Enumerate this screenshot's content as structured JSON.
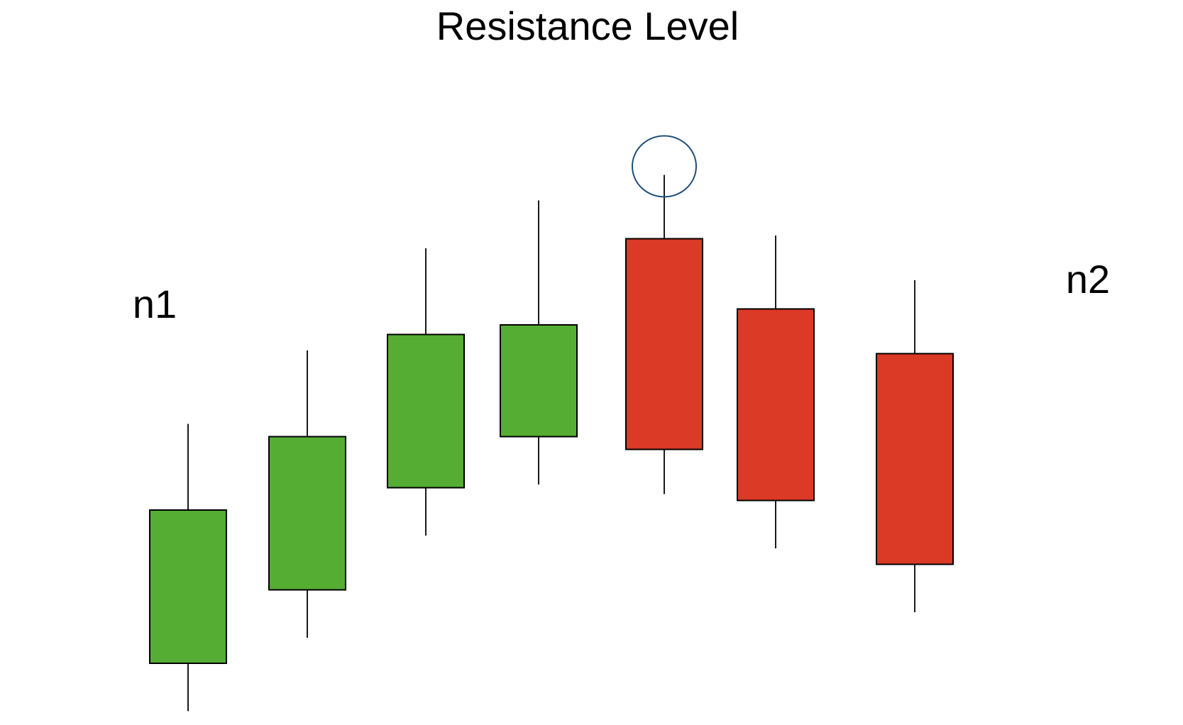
{
  "chart_data": {
    "type": "candlestick",
    "title": "Resistance Level",
    "xlabel": "",
    "ylabel": "",
    "grid": false,
    "legend": "none",
    "ylim": [
      0,
      1000
    ],
    "annotations": [
      {
        "text": "n1",
        "placement": "left of first candle"
      },
      {
        "text": "n2",
        "placement": "right of last candle"
      }
    ],
    "highlight": {
      "candle_index": 4,
      "target": "upper wick tip",
      "shape": "circle"
    },
    "colors": {
      "bullish": "#55AD33",
      "bearish": "#DB3A27",
      "outline": "#000000",
      "wick": "#000000",
      "highlight": "#1F4E79"
    },
    "candles": [
      {
        "open": 100,
        "close": 340,
        "high": 475,
        "low": 25,
        "direction": "up"
      },
      {
        "open": 215,
        "close": 455,
        "high": 590,
        "low": 140,
        "direction": "up"
      },
      {
        "open": 375,
        "close": 615,
        "high": 750,
        "low": 300,
        "direction": "up"
      },
      {
        "open": 455,
        "close": 630,
        "high": 825,
        "low": 380,
        "direction": "up"
      },
      {
        "open": 765,
        "close": 435,
        "high": 865,
        "low": 365,
        "direction": "down"
      },
      {
        "open": 655,
        "close": 355,
        "high": 770,
        "low": 280,
        "direction": "down"
      },
      {
        "open": 585,
        "close": 255,
        "high": 700,
        "low": 180,
        "direction": "down"
      }
    ]
  }
}
